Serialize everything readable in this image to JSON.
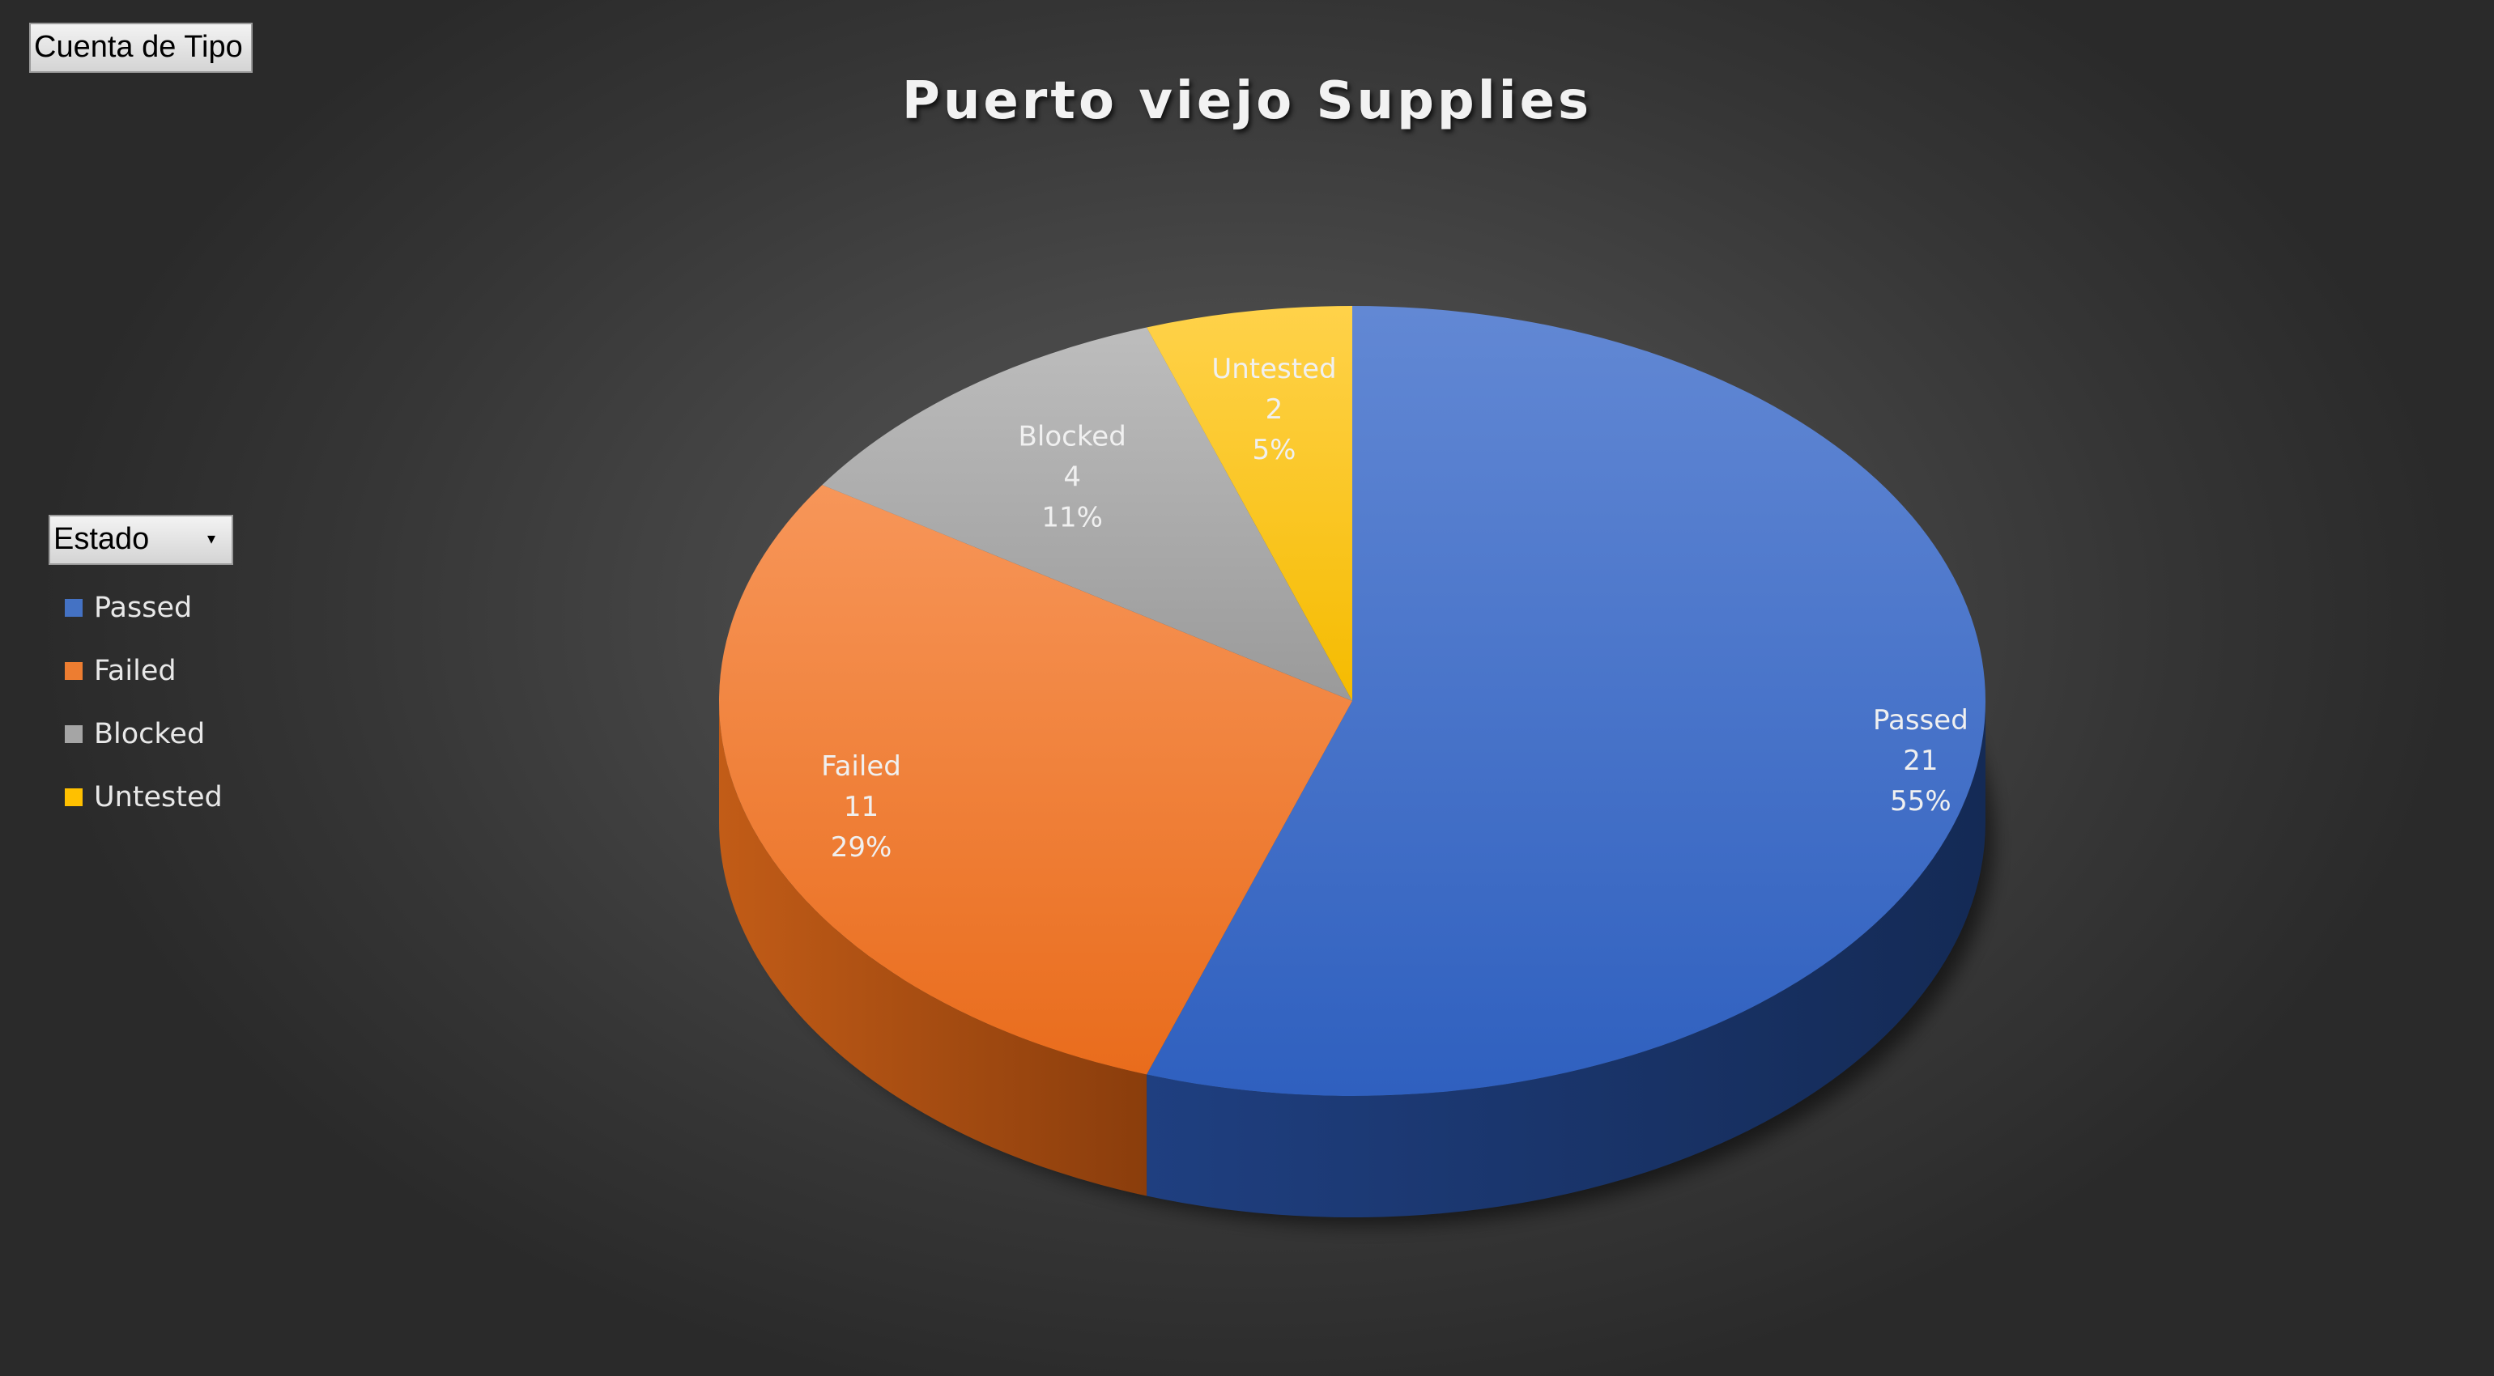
{
  "field_buttons": {
    "value_field": "Cuenta de Tipo",
    "legend_field": "Estado"
  },
  "icons": {
    "legend_dropdown": "dropdown-arrow-icon"
  },
  "chart_data": {
    "type": "pie",
    "title": "Puerto viejo Supplies",
    "style": "3d",
    "legend_position": "left",
    "categories": [
      "Passed",
      "Failed",
      "Blocked",
      "Untested"
    ],
    "values": [
      21,
      11,
      4,
      2
    ],
    "percent_labels": [
      "55%",
      "29%",
      "11%",
      "5%"
    ],
    "colors": [
      "#4472C4",
      "#ED7D31",
      "#A5A5A5",
      "#FFC000"
    ]
  }
}
